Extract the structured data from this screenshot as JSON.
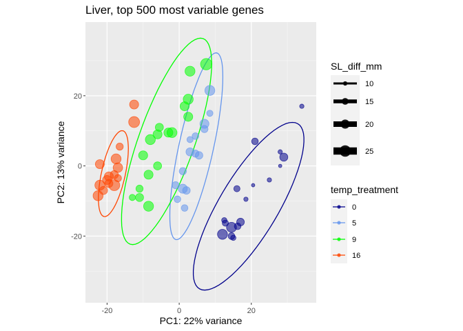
{
  "chart_data": {
    "type": "scatter",
    "title": "Liver, top 500 most variable genes",
    "xlabel": "PC1: 22% variance",
    "ylabel": "PC2: 13% variance",
    "xlim": [
      -26,
      38
    ],
    "ylim": [
      -39,
      41
    ],
    "xticks": [
      -20,
      0,
      20
    ],
    "yticks": [
      -20,
      0,
      20
    ],
    "grid": true,
    "legend_position": "right",
    "size_legend": {
      "title": "SL_diff_mm",
      "entries": [
        {
          "label": "10",
          "value": 10
        },
        {
          "label": "15",
          "value": 15
        },
        {
          "label": "20",
          "value": 20
        },
        {
          "label": "25",
          "value": 25
        }
      ]
    },
    "color_legend": {
      "title": "temp_treatment",
      "entries": [
        {
          "label": "0",
          "color": "#00008B"
        },
        {
          "label": "5",
          "color": "#6495ED"
        },
        {
          "label": "9",
          "color": "#00FF00"
        },
        {
          "label": "16",
          "color": "#FF4500"
        }
      ]
    },
    "ellipses": [
      {
        "group": "0",
        "color": "#00008B",
        "cx": 19.25,
        "cy": -11.5,
        "rx": 27.2,
        "ry": 8.2,
        "angle_deg": 60
      },
      {
        "group": "5",
        "color": "#6495ED",
        "cx": 4.75,
        "cy": 5.6,
        "rx": 27.2,
        "ry": 4.8,
        "angle_deg": 78
      },
      {
        "group": "9",
        "color": "#00FF00",
        "cx": -3.5,
        "cy": 7.0,
        "rx": 31.0,
        "ry": 7.8,
        "angle_deg": 71
      },
      {
        "group": "16",
        "color": "#FF4500",
        "cx": -18.25,
        "cy": -2.2,
        "rx": 12.5,
        "ry": 3.3,
        "angle_deg": 78
      }
    ],
    "series": [
      {
        "name": "0",
        "color": "#00008B",
        "points": [
          {
            "x": 34,
            "y": 17,
            "size": 10
          },
          {
            "x": 21,
            "y": 7,
            "size": 15
          },
          {
            "x": 28,
            "y": 4,
            "size": 10
          },
          {
            "x": 29,
            "y": 2.5,
            "size": 18
          },
          {
            "x": 28,
            "y": 0,
            "size": 8
          },
          {
            "x": 25,
            "y": -4,
            "size": 10
          },
          {
            "x": 20.5,
            "y": -5.5,
            "size": 8
          },
          {
            "x": 16,
            "y": -6.5,
            "size": 14
          },
          {
            "x": 18.5,
            "y": -9.5,
            "size": 10
          },
          {
            "x": 12.5,
            "y": -15.5,
            "size": 12
          },
          {
            "x": 12.8,
            "y": -16.3,
            "size": 14
          },
          {
            "x": 17,
            "y": -16,
            "size": 17
          },
          {
            "x": 14.5,
            "y": -17.5,
            "size": 22
          },
          {
            "x": 16.2,
            "y": -17.2,
            "size": 15
          },
          {
            "x": 12,
            "y": -19.5,
            "size": 22
          },
          {
            "x": 14.5,
            "y": -20,
            "size": 15
          },
          {
            "x": 15,
            "y": -20.5,
            "size": 12
          }
        ]
      },
      {
        "name": "5",
        "color": "#6495ED",
        "points": [
          {
            "x": 8.5,
            "y": 21.5,
            "size": 22
          },
          {
            "x": 8.5,
            "y": 15,
            "size": 14
          },
          {
            "x": 7,
            "y": 12,
            "size": 20
          },
          {
            "x": 7,
            "y": 10.5,
            "size": 16
          },
          {
            "x": 4.5,
            "y": 8.5,
            "size": 15
          },
          {
            "x": 3,
            "y": 7.5,
            "size": 14
          },
          {
            "x": 3,
            "y": 4,
            "size": 18
          },
          {
            "x": 4.5,
            "y": 3.5,
            "size": 16
          },
          {
            "x": 5.5,
            "y": 3,
            "size": 17
          },
          {
            "x": 1,
            "y": -1.5,
            "size": 16
          },
          {
            "x": -1,
            "y": -5.5,
            "size": 16
          },
          {
            "x": 1,
            "y": -6.5,
            "size": 20
          },
          {
            "x": 2,
            "y": -7,
            "size": 17
          },
          {
            "x": -0.5,
            "y": -9.5,
            "size": 15
          },
          {
            "x": 1.5,
            "y": -12,
            "size": 15
          }
        ]
      },
      {
        "name": "9",
        "color": "#00FF00",
        "points": [
          {
            "x": 7.5,
            "y": 29,
            "size": 25
          },
          {
            "x": 3,
            "y": 27,
            "size": 22
          },
          {
            "x": 2.5,
            "y": 19,
            "size": 22
          },
          {
            "x": 1.5,
            "y": 17,
            "size": 20
          },
          {
            "x": 2.5,
            "y": 14,
            "size": 20
          },
          {
            "x": -5.5,
            "y": 11,
            "size": 18
          },
          {
            "x": -2,
            "y": 9.5,
            "size": 22
          },
          {
            "x": -3,
            "y": 9.5,
            "size": 20
          },
          {
            "x": -6,
            "y": 9,
            "size": 20
          },
          {
            "x": -8,
            "y": 7.5,
            "size": 22
          },
          {
            "x": -10,
            "y": 3,
            "size": 20
          },
          {
            "x": -6,
            "y": 0,
            "size": 18
          },
          {
            "x": -8.5,
            "y": -2.5,
            "size": 20
          },
          {
            "x": -11,
            "y": -6.5,
            "size": 16
          },
          {
            "x": -13,
            "y": -9,
            "size": 14
          },
          {
            "x": -11,
            "y": -9,
            "size": 18
          },
          {
            "x": -8.5,
            "y": -11.5,
            "size": 22
          }
        ]
      },
      {
        "name": "16",
        "color": "#FF4500",
        "points": [
          {
            "x": -12.5,
            "y": 17.5,
            "size": 20
          },
          {
            "x": -12.5,
            "y": 12.5,
            "size": 24
          },
          {
            "x": -16.5,
            "y": 5.5,
            "size": 16
          },
          {
            "x": -17.5,
            "y": 2,
            "size": 22
          },
          {
            "x": -22,
            "y": 0.5,
            "size": 20
          },
          {
            "x": -17,
            "y": -0.5,
            "size": 21
          },
          {
            "x": -18,
            "y": -2.5,
            "size": 18
          },
          {
            "x": -19.5,
            "y": -3,
            "size": 20
          },
          {
            "x": -17,
            "y": -3.5,
            "size": 16
          },
          {
            "x": -20,
            "y": -4,
            "size": 20
          },
          {
            "x": -19.5,
            "y": -5,
            "size": 18
          },
          {
            "x": -18,
            "y": -5.5,
            "size": 24
          },
          {
            "x": -22,
            "y": -5.5,
            "size": 22
          },
          {
            "x": -21,
            "y": -7,
            "size": 18
          },
          {
            "x": -22.5,
            "y": -8.5,
            "size": 22
          }
        ]
      }
    ]
  }
}
